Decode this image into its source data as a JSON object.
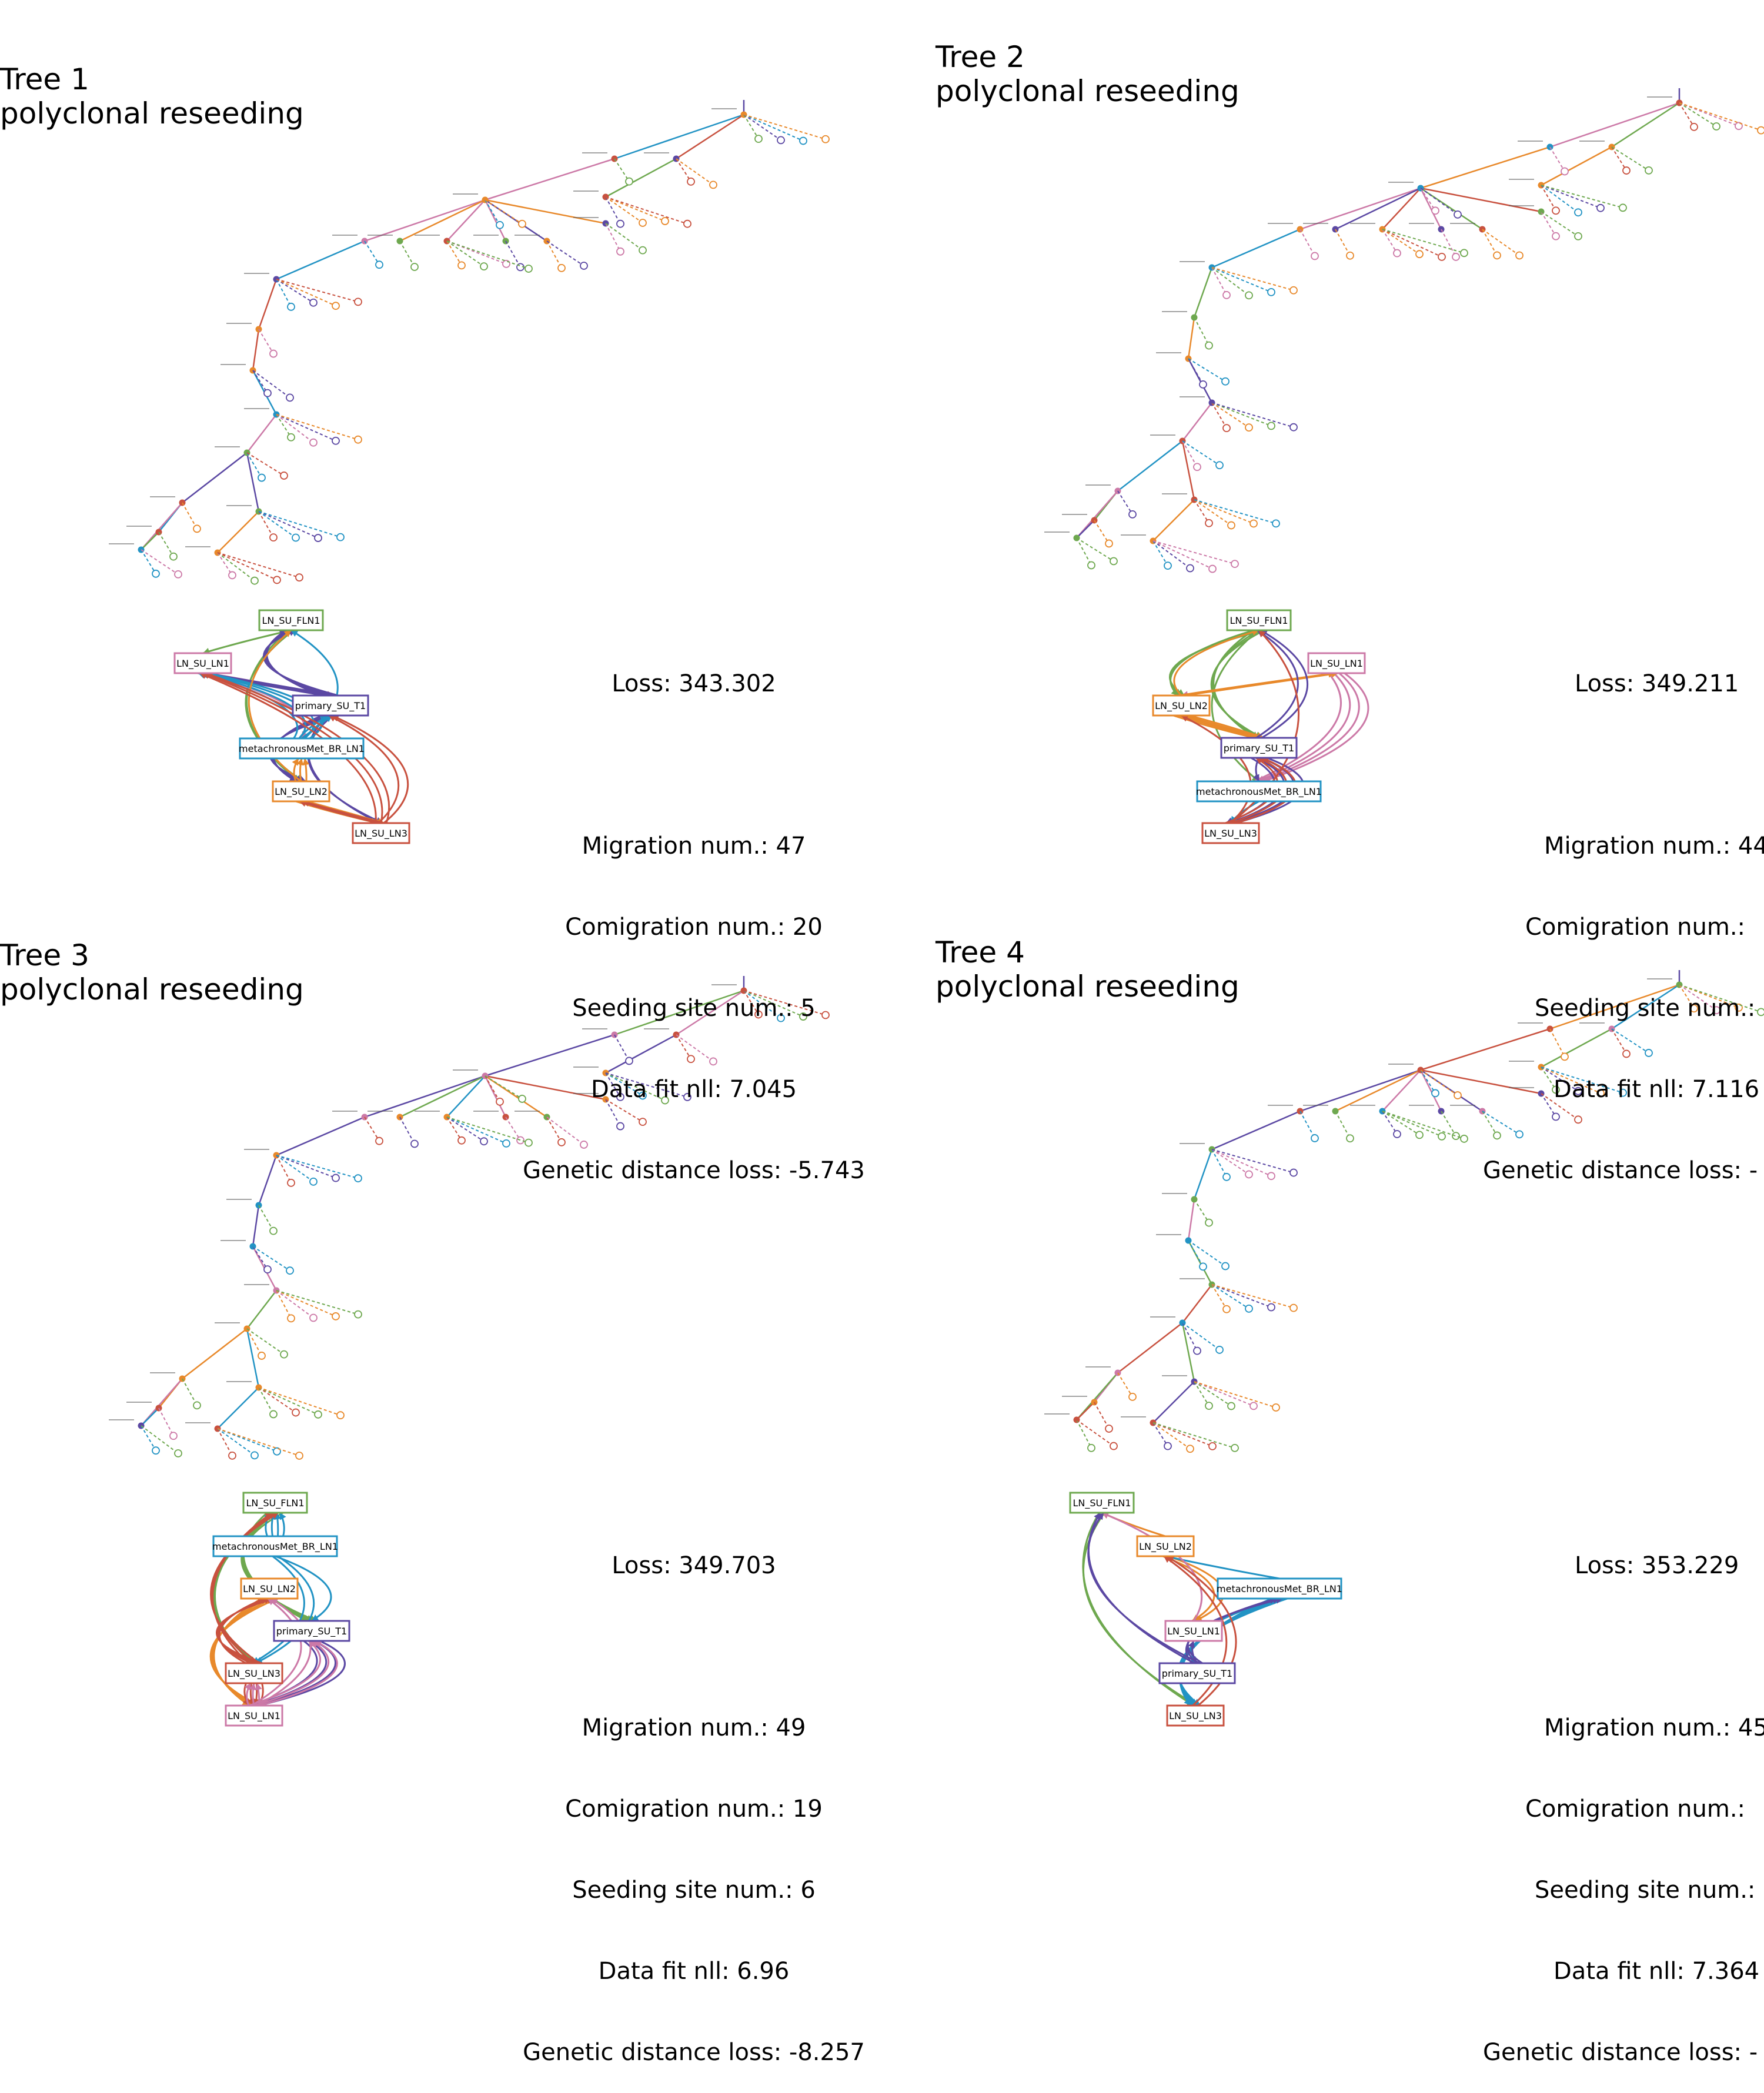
{
  "colors": {
    "LN_SU_FLN1": "#6ea84f",
    "LN_SU_LN1": "#cc79a7",
    "primary_SU_T1": "#5b48a3",
    "metachronousMet_BR_LN1": "#2293c4",
    "LN_SU_LN2": "#e8892b",
    "LN_SU_LN3": "#c8513f"
  },
  "panels": [
    {
      "title": "Tree 1",
      "subtitle": "polyclonal reseeding",
      "stats": {
        "loss": "Loss: 343.302",
        "migration": "Migration num.: 47",
        "comigration": "Comigration num.: 20",
        "seeding": "Seeding site num.: 5",
        "datafit": "Data fit nll: 7.045",
        "gendist": "Genetic distance loss: -5.743"
      },
      "sites": [
        {
          "label": "LN_SU_FLN1",
          "site": "LN_SU_FLN1"
        },
        {
          "label": "LN_SU_LN1",
          "site": "LN_SU_LN1"
        },
        {
          "label": "primary_SU_T1",
          "site": "primary_SU_T1"
        },
        {
          "label": "metachronousMet_BR_LN1",
          "site": "metachronousMet_BR_LN1"
        },
        {
          "label": "LN_SU_LN2",
          "site": "LN_SU_LN2"
        },
        {
          "label": "LN_SU_LN3",
          "site": "LN_SU_LN3"
        }
      ]
    },
    {
      "title": "Tree 2",
      "subtitle": "polyclonal reseeding",
      "stats": {
        "loss": "Loss: 349.211",
        "migration": "Migration num.: 44",
        "comigration": "Comigration num.:",
        "seeding": "Seeding site num.:",
        "datafit": "Data fit nll: 7.116",
        "gendist": "Genetic distance loss: -"
      },
      "sites": [
        {
          "label": "LN_SU_FLN1",
          "site": "LN_SU_FLN1"
        },
        {
          "label": "LN_SU_LN1",
          "site": "LN_SU_LN1"
        },
        {
          "label": "LN_SU_LN2",
          "site": "LN_SU_LN2"
        },
        {
          "label": "primary_SU_T1",
          "site": "primary_SU_T1"
        },
        {
          "label": "metachronousMet_BR_LN1",
          "site": "metachronousMet_BR_LN1"
        },
        {
          "label": "LN_SU_LN3",
          "site": "LN_SU_LN3"
        }
      ]
    },
    {
      "title": "Tree 3",
      "subtitle": "polyclonal reseeding",
      "stats": {
        "loss": "Loss: 349.703",
        "migration": "Migration num.: 49",
        "comigration": "Comigration num.: 19",
        "seeding": "Seeding site num.: 6",
        "datafit": "Data fit nll: 6.96",
        "gendist": "Genetic distance loss: -8.257"
      },
      "sites": [
        {
          "label": "LN_SU_FLN1",
          "site": "LN_SU_FLN1"
        },
        {
          "label": "metachronousMet_BR_LN1",
          "site": "metachronousMet_BR_LN1"
        },
        {
          "label": "LN_SU_LN2",
          "site": "LN_SU_LN2"
        },
        {
          "label": "primary_SU_T1",
          "site": "primary_SU_T1"
        },
        {
          "label": "LN_SU_LN3",
          "site": "LN_SU_LN3"
        },
        {
          "label": "LN_SU_LN1",
          "site": "LN_SU_LN1"
        }
      ]
    },
    {
      "title": "Tree 4",
      "subtitle": "polyclonal reseeding",
      "stats": {
        "loss": "Loss: 353.229",
        "migration": "Migration num.: 45",
        "comigration": "Comigration num.:",
        "seeding": "Seeding site num.:",
        "datafit": "Data fit nll: 7.364",
        "gendist": "Genetic distance loss: -"
      },
      "sites": [
        {
          "label": "LN_SU_FLN1",
          "site": "LN_SU_FLN1"
        },
        {
          "label": "LN_SU_LN2",
          "site": "LN_SU_LN2"
        },
        {
          "label": "metachronousMet_BR_LN1",
          "site": "metachronousMet_BR_LN1"
        },
        {
          "label": "LN_SU_LN1",
          "site": "LN_SU_LN1"
        },
        {
          "label": "primary_SU_T1",
          "site": "primary_SU_T1"
        },
        {
          "label": "LN_SU_LN3",
          "site": "LN_SU_LN3"
        }
      ]
    }
  ]
}
